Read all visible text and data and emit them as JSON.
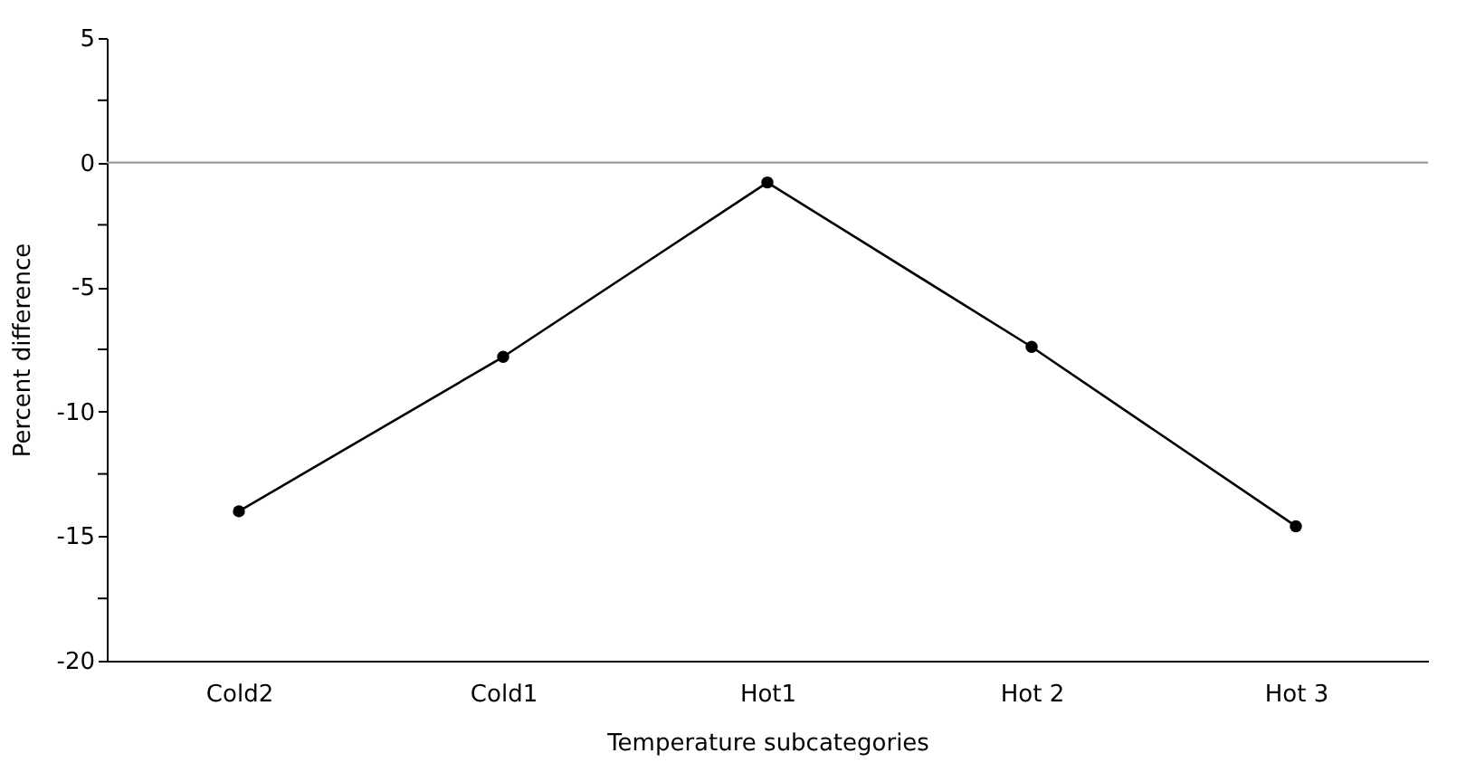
{
  "chart_data": {
    "type": "line",
    "xlabel": "Temperature subcategories",
    "ylabel": "Percent difference",
    "categories": [
      "Cold2",
      "Cold1",
      "Hot1",
      "Hot 2",
      "Hot 3"
    ],
    "series": [
      {
        "color": "#000000",
        "values": [
          -14,
          -7.8,
          -0.8,
          -7.4,
          -14.6
        ]
      }
    ],
    "ylim": [
      -20,
      5
    ],
    "yticks": [
      -20,
      {
        "value": -17.5,
        "label": null
      },
      -15,
      {
        "value": -12.5,
        "label": null
      },
      -10,
      {
        "value": -7.5,
        "label": null
      },
      -5,
      {
        "value": -2.5,
        "label": null
      },
      0,
      {
        "value": 2.5,
        "label": null
      },
      5
    ],
    "ref_lines": [
      {
        "axis": "y",
        "value": 0,
        "color": "#999999"
      }
    ],
    "marker": "circle",
    "line_style": "solid",
    "grid": false
  }
}
